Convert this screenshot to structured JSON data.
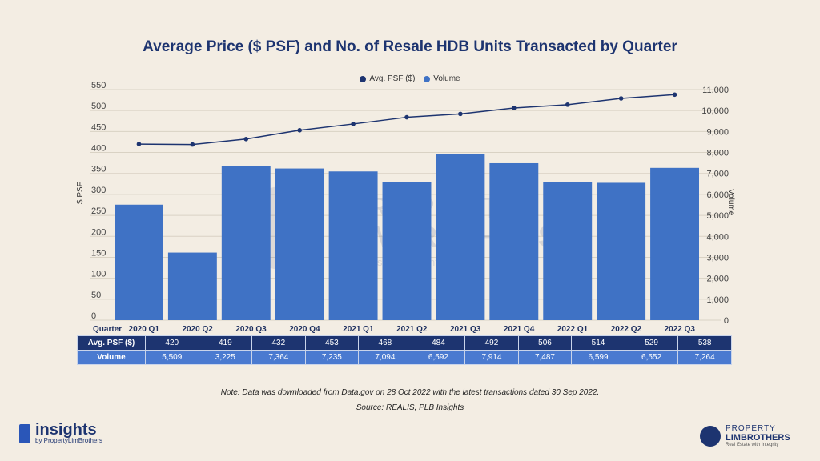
{
  "header": {
    "title": "Average Price ($ PSF) and No. of Resale HDB Units Transacted by Quarter"
  },
  "legend": {
    "line_label": "Avg. PSF ($)",
    "bar_label": "Volume"
  },
  "colors": {
    "line": "#1d3470",
    "bar": "#3f72c5",
    "grid": "#d9d2c4"
  },
  "chart_data": {
    "type": "bar+line",
    "categories": [
      "2020 Q1",
      "2020 Q2",
      "2020 Q3",
      "2020 Q4",
      "2021 Q1",
      "2021 Q2",
      "2021 Q3",
      "2021 Q4",
      "2022 Q1",
      "2022 Q2",
      "2022 Q3"
    ],
    "series": [
      {
        "name": "Avg. PSF ($)",
        "type": "line",
        "axis": "left",
        "values": [
          420,
          419,
          432,
          453,
          468,
          484,
          492,
          506,
          514,
          529,
          538
        ]
      },
      {
        "name": "Volume",
        "type": "bar",
        "axis": "right",
        "values": [
          5509,
          3225,
          7364,
          7235,
          7094,
          6592,
          7914,
          7487,
          6599,
          6552,
          7264
        ]
      }
    ],
    "ylabel_left": "$ PSF",
    "ylabel_right": "Volume",
    "ylim_left": [
      0,
      550
    ],
    "ylim_right": [
      0,
      11000
    ],
    "yticks_left": [
      "0",
      "50",
      "100",
      "150",
      "200",
      "250",
      "300",
      "350",
      "400",
      "450",
      "500",
      "550"
    ],
    "yticks_right": [
      "0",
      "1,000",
      "2,000",
      "3,000",
      "4,000",
      "5,000",
      "6,000",
      "7,000",
      "8,000",
      "9,000",
      "10,000",
      "11,000"
    ],
    "xlabel": "Quarter"
  },
  "table": {
    "row1_label": "Avg. PSF ($)",
    "row2_label": "Volume",
    "psf": [
      "420",
      "419",
      "432",
      "453",
      "468",
      "484",
      "492",
      "506",
      "514",
      "529",
      "538"
    ],
    "volume": [
      "5,509",
      "3,225",
      "7,364",
      "7,235",
      "7,094",
      "6,592",
      "7,914",
      "7,487",
      "6,599",
      "6,552",
      "7,264"
    ]
  },
  "watermark": {
    "line1": "PROPERTY",
    "line2": "LIMBROTHERS",
    "line3": "Real Estate With Integrity"
  },
  "note": "Note: Data was downloaded from Data.gov on 28 Oct 2022 with the latest transactions dated 30 Sep 2022.",
  "source": "Source: REALIS, PLB Insights",
  "logo_left": {
    "word": "insights",
    "sub": "by PropertyLimBrothers"
  },
  "logo_right": {
    "line1": "PROPERTY",
    "line2": "LIMBROTHERS",
    "line3": "Real Estate with Integrity"
  }
}
